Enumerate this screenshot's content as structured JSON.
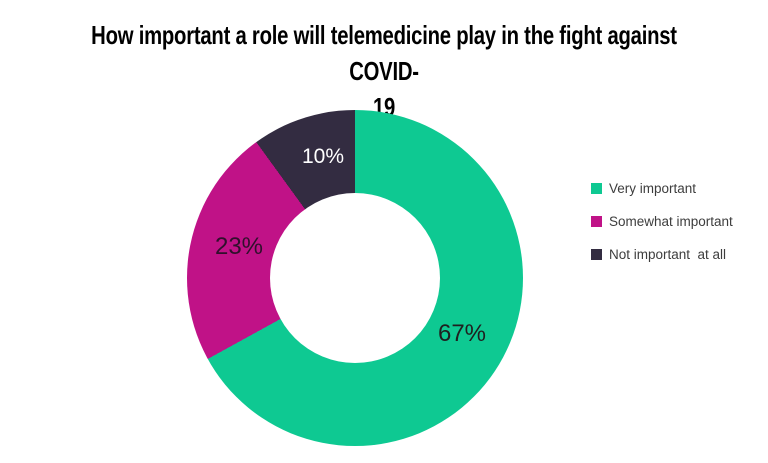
{
  "title": "How important a role will telemedicine play in the fight against COVID-19",
  "title_lines": [
    "How important a role will telemedicine play in the fight against COVID-",
    "19"
  ],
  "chart_data": {
    "type": "pie",
    "style": "donut",
    "title": "How important a role will telemedicine play in the fight against COVID-19",
    "categories": [
      "Very important",
      "Somewhat important",
      "Not important at all"
    ],
    "values": [
      67,
      23,
      10
    ],
    "unit": "%",
    "slice_labels": [
      "67%",
      "23%",
      "10%"
    ],
    "slice_colors": [
      "#0ec992",
      "#c01287",
      "#332c41"
    ],
    "slice_label_colors": [
      "#1f1f1f",
      "#30102c",
      "#ffffff"
    ],
    "start_angle_deg": 0,
    "direction": "clockwise",
    "inner_radius_ratio": 0.51,
    "grid": false,
    "legend_position": "right",
    "legend": [
      {
        "label": "Very important",
        "color": "#0ec992"
      },
      {
        "label": "Somewhat important",
        "color": "#c01287"
      },
      {
        "label": "Not important  at all",
        "color": "#332c41"
      }
    ]
  }
}
